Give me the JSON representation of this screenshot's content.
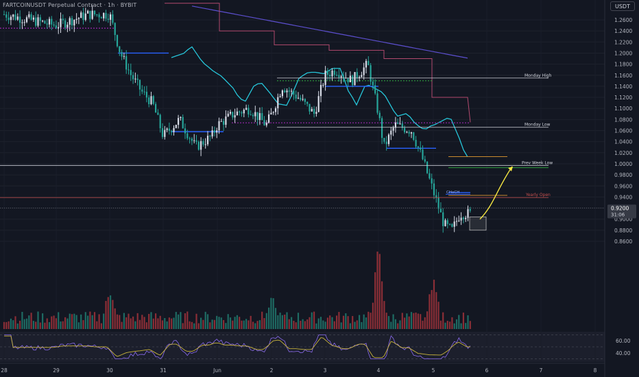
{
  "header": {
    "symbol_title": "FARTCOINUSDT Perpetual Contract · 1h · BYBIT",
    "currency_button": "USDT"
  },
  "price_tag": {
    "price": "0.9200",
    "countdown": "31:06"
  },
  "colors": {
    "background": "#131722",
    "up": "#d9dde8",
    "down": "#26a69a",
    "vol_up": "#1e6b63",
    "vol_down": "#8b2e36",
    "ma_teal": "#26c6da",
    "ma_purple": "#5c4fcf",
    "step_pink": "#b24a6e",
    "arrow": "#f5e642",
    "rsi": "#8c6cf0",
    "rsi_ma": "#c9b43c"
  },
  "chart_data": [
    {
      "type": "candlestick",
      "title": "",
      "x_ticks": [
        "28",
        "29",
        "30",
        "31",
        "Jun",
        "2",
        "3",
        "4",
        "5",
        "6",
        "7",
        "8"
      ],
      "y_ticks": [
        0.86,
        0.88,
        0.9,
        0.92,
        0.94,
        0.96,
        0.98,
        1.0,
        1.02,
        1.04,
        1.06,
        1.08,
        1.1,
        1.12,
        1.14,
        1.16,
        1.18,
        1.2,
        1.22,
        1.24,
        1.26
      ],
      "ylim": [
        0.84,
        1.28
      ],
      "last_price": 0.92,
      "close_path": [
        [
          "28",
          1.27
        ],
        [
          "29",
          1.25
        ],
        [
          "29.3",
          1.26
        ],
        [
          "29.6",
          1.27
        ],
        [
          "30",
          1.27
        ],
        [
          "30.2",
          1.2
        ],
        [
          "30.4",
          1.16
        ],
        [
          "30.6",
          1.13
        ],
        [
          "30.8",
          1.11
        ],
        [
          "31",
          1.05
        ],
        [
          "31.3",
          1.08
        ],
        [
          "31.6",
          1.03
        ],
        [
          "31.9",
          1.05
        ],
        [
          "Jun",
          1.07
        ],
        [
          "Jun.3",
          1.09
        ],
        [
          "Jun.6",
          1.1
        ],
        [
          "Jun.9",
          1.07
        ],
        [
          "2",
          1.09
        ],
        [
          "2.2",
          1.14
        ],
        [
          "2.5",
          1.12
        ],
        [
          "2.8",
          1.09
        ],
        [
          "3",
          1.16
        ],
        [
          "3.2",
          1.17
        ],
        [
          "3.5",
          1.15
        ],
        [
          "3.8",
          1.18
        ],
        [
          "4",
          1.09
        ],
        [
          "4.1",
          1.03
        ],
        [
          "4.3",
          1.07
        ],
        [
          "4.6",
          1.06
        ],
        [
          "4.8",
          1.01
        ],
        [
          "5",
          0.95
        ],
        [
          "5.2",
          0.89
        ],
        [
          "5.35",
          0.88
        ],
        [
          "5.5",
          0.91
        ]
      ],
      "levels": [
        {
          "label": "Monday High",
          "value": 1.155
        },
        {
          "label": "Monday Low",
          "value": 1.066
        },
        {
          "label": "Prev Week Low",
          "value": 0.997
        },
        {
          "label": "Yearly Open",
          "value": 0.939
        }
      ],
      "annotations": [
        {
          "text": "CHoCH",
          "value": 0.945
        },
        {
          "text": "projected move",
          "from": 0.9,
          "to": 0.995
        }
      ],
      "series": [
        {
          "kind": "moving average",
          "color": "#26c6da"
        },
        {
          "kind": "moving average",
          "color": "#5c4fcf"
        },
        {
          "kind": "step level",
          "color": "#b24a6e"
        }
      ]
    },
    {
      "type": "bar",
      "title": "",
      "note": "volume histogram",
      "relative_peaks": [
        [
          "4",
          1.0
        ],
        [
          "2",
          0.35
        ],
        [
          "30",
          0.45
        ],
        [
          "5",
          0.6
        ]
      ]
    },
    {
      "type": "line",
      "title": "",
      "note": "RSI oscillator",
      "y_ticks": [
        40.0,
        60.0
      ],
      "ylim": [
        25,
        75
      ]
    }
  ]
}
